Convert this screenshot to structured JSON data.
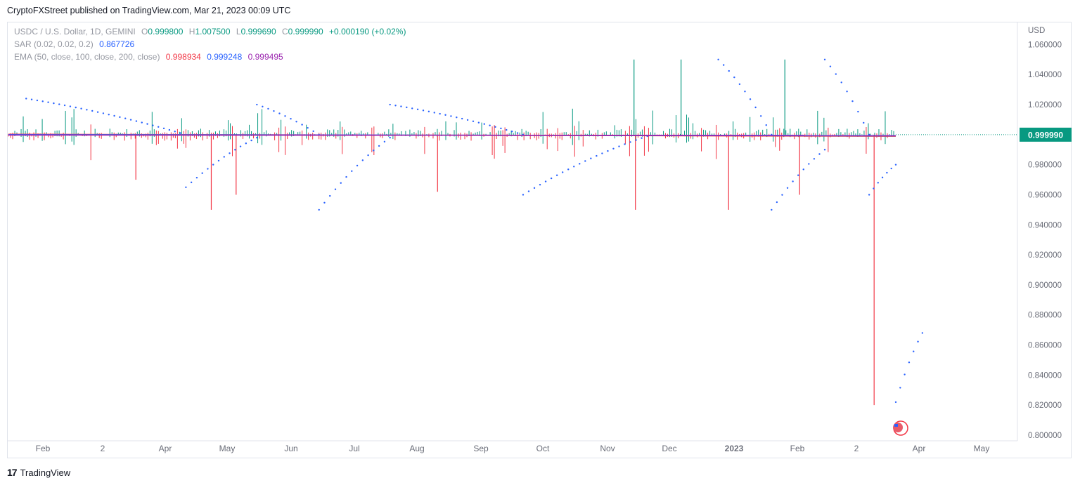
{
  "header": {
    "published": "CryptoFXStreet published on TradingView.com, Mar 21, 2023 00:09 UTC"
  },
  "legend": {
    "symbol": "USDC / U.S. Dollar, 1D, GEMINI",
    "o_label": "O",
    "o_value": "0.999800",
    "h_label": "H",
    "h_value": "1.007500",
    "l_label": "L",
    "l_value": "0.999690",
    "c_label": "C",
    "c_value": "0.999990",
    "change": "+0.000190 (+0.02%)",
    "sar_label": "SAR (0.02, 0.02, 0.2)",
    "sar_value": "0.867726",
    "ema_label": "EMA (50, close, 100, close, 200, close)",
    "ema50": "0.998934",
    "ema100": "0.999248",
    "ema200": "0.999495"
  },
  "footer": {
    "brand": "TradingView",
    "logo_glyph": "17"
  },
  "colors": {
    "up": "#089981",
    "down": "#f23645",
    "sar": "#2962ff",
    "ema50": "#f23645",
    "ema100": "#2962ff",
    "ema200": "#9c27b0",
    "last_price": "#089981"
  },
  "chart_data": {
    "type": "candlestick",
    "symbol": "USDC / U.S. Dollar",
    "interval": "1D",
    "exchange": "GEMINI",
    "axis_currency": "USD",
    "ylim": [
      0.8,
      1.07
    ],
    "y_ticks": [
      "1.060000",
      "1.040000",
      "1.020000",
      "1.000000",
      "0.980000",
      "0.960000",
      "0.940000",
      "0.920000",
      "0.900000",
      "0.880000",
      "0.860000",
      "0.840000",
      "0.820000",
      "0.800000"
    ],
    "x_ticks": [
      "Feb",
      "2",
      "Apr",
      "May",
      "Jun",
      "Jul",
      "Aug",
      "Sep",
      "Oct",
      "Nov",
      "Dec",
      "2023",
      "Feb",
      "2",
      "Apr",
      "May"
    ],
    "last_price": "0.999990",
    "ohlc_last": {
      "open": 0.9998,
      "high": 1.0075,
      "low": 0.99969,
      "close": 0.99999
    },
    "notable_wicks": [
      {
        "date": "2022-03",
        "low": 0.97
      },
      {
        "date": "2022-04",
        "low": 0.95
      },
      {
        "date": "2022-04",
        "low": 0.96
      },
      {
        "date": "2022-08",
        "low": 0.962
      },
      {
        "date": "2022-11",
        "high": 1.05,
        "low": 0.95
      },
      {
        "date": "2022-12",
        "high": 1.05
      },
      {
        "date": "2023-01",
        "low": 0.95
      },
      {
        "date": "2023-01",
        "high": 1.05
      },
      {
        "date": "2023-02",
        "low": 0.96
      },
      {
        "date": "2023-03-11",
        "low": 0.82
      }
    ],
    "sar_segments": [
      {
        "position": "above",
        "from": [
          0.02,
          1.024
        ],
        "to": [
          0.2,
          1.0
        ]
      },
      {
        "position": "below",
        "from": [
          0.2,
          0.965
        ],
        "to": [
          0.28,
          0.998
        ]
      },
      {
        "position": "above",
        "from": [
          0.28,
          1.02
        ],
        "to": [
          0.35,
          1.0
        ]
      },
      {
        "position": "below",
        "from": [
          0.35,
          0.95
        ],
        "to": [
          0.43,
          0.998
        ]
      },
      {
        "position": "above",
        "from": [
          0.43,
          1.02
        ],
        "to": [
          0.58,
          1.0
        ]
      },
      {
        "position": "below",
        "from": [
          0.58,
          0.96
        ],
        "to": [
          0.72,
          0.999
        ]
      },
      {
        "position": "above",
        "from": [
          0.8,
          1.05
        ],
        "to": [
          0.86,
          1.0
        ]
      },
      {
        "position": "below",
        "from": [
          0.86,
          0.95
        ],
        "to": [
          0.92,
          0.99
        ]
      },
      {
        "position": "above",
        "from": [
          0.92,
          1.05
        ],
        "to": [
          0.97,
          1.0
        ]
      },
      {
        "position": "below",
        "from": [
          0.97,
          0.96
        ],
        "to": [
          1.0,
          0.98
        ]
      },
      {
        "position": "below",
        "from": [
          1.0,
          0.822
        ],
        "to": [
          1.03,
          0.868
        ]
      }
    ],
    "ema": [
      {
        "name": "EMA 50",
        "last": 0.998934
      },
      {
        "name": "EMA 100",
        "last": 0.999248
      },
      {
        "name": "EMA 200",
        "last": 0.999495
      }
    ]
  }
}
